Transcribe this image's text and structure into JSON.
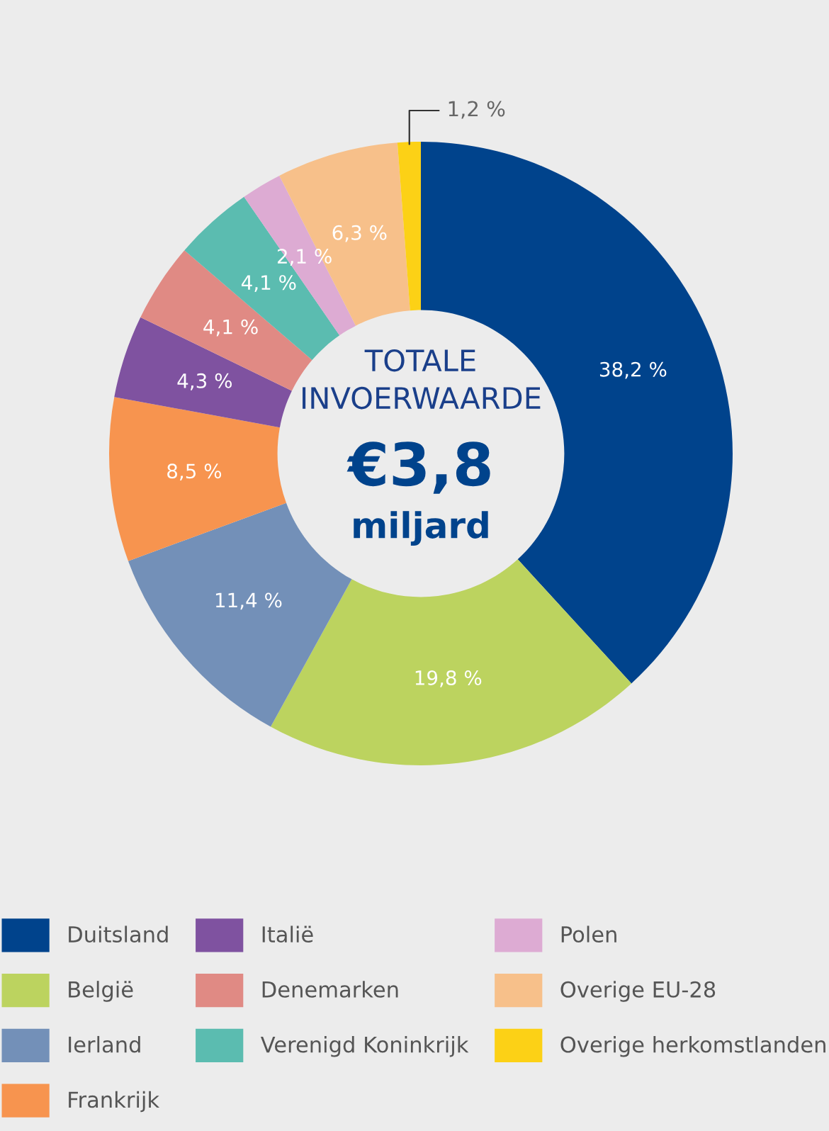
{
  "chart_data": {
    "type": "donut",
    "categories": [
      "Duitsland",
      "België",
      "Ierland",
      "Frankrijk",
      "Italië",
      "Denemarken",
      "Verenigd Koninkrijk",
      "Polen",
      "Overige EU-28",
      "Overige herkomstlanden"
    ],
    "values": [
      38.2,
      19.8,
      11.4,
      8.5,
      4.3,
      4.1,
      4.1,
      2.1,
      6.3,
      1.2
    ],
    "colors": [
      "#00438c",
      "#bcd35f",
      "#7390b8",
      "#f7944f",
      "#7f52a0",
      "#e08a84",
      "#5bbcb0",
      "#ddabd3",
      "#f7c08a",
      "#fcd116"
    ],
    "value_labels": [
      "38,2 %",
      "19,8 %",
      "11,4 %",
      "8,5 %",
      "4,3 %",
      "4,1 %",
      "4,1 %",
      "2,1 %",
      "6,3 %",
      "1,2 %"
    ],
    "annotations": [
      "TOTALE\nINVOERWAARDE",
      "€3,8",
      "miljard"
    ],
    "legend": "bottom"
  }
}
